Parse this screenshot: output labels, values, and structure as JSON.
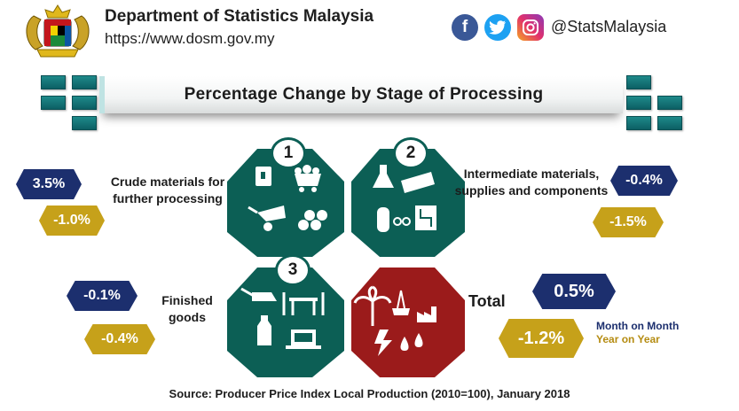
{
  "header": {
    "department": "Department of Statistics Malaysia",
    "website": "https://www.dosm.gov.my",
    "social_handle": "@StatsMalaysia",
    "social_icons": [
      "facebook-icon",
      "twitter-icon",
      "instagram-icon"
    ]
  },
  "title": "Percentage Change by Stage of Processing",
  "stages": [
    {
      "number": "1",
      "label_line1": "Crude materials for",
      "label_line2": "further processing",
      "mom": "3.5%",
      "yoy": "-1.0%"
    },
    {
      "number": "2",
      "label_line1": "Intermediate materials,",
      "label_line2": "supplies and components",
      "mom": "-0.4%",
      "yoy": "-1.5%"
    },
    {
      "number": "3",
      "label_line1": "Finished",
      "label_line2": "goods",
      "mom": "-0.1%",
      "yoy": "-0.4%"
    }
  ],
  "total": {
    "label": "Total",
    "mom": "0.5%",
    "yoy": "-1.2%"
  },
  "legend": {
    "mom": "Month on Month",
    "yoy": "Year on Year"
  },
  "source": "Source: Producer Price Index Local Production (2010=100),  January 2018",
  "colors": {
    "teal": "#0c5f55",
    "red": "#9b1b1b",
    "navy": "#1c2f6e",
    "gold": "#c6a11a"
  }
}
